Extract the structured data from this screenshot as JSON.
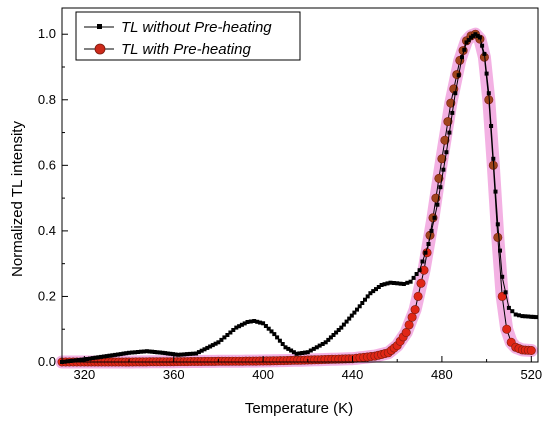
{
  "chart_data": {
    "type": "line",
    "title": "",
    "xlabel": "Temperature (K)",
    "ylabel": "Normalized TL intensity",
    "xlim": [
      310,
      523
    ],
    "ylim": [
      0.0,
      1.08
    ],
    "x_ticks": [
      320,
      360,
      400,
      440,
      480,
      520
    ],
    "y_ticks": [
      0.0,
      0.2,
      0.4,
      0.6,
      0.8,
      1.0
    ],
    "x_tick_labels": [
      "320",
      "360",
      "400",
      "440",
      "480",
      "520"
    ],
    "y_tick_labels": [
      "0.0",
      "0.2",
      "0.4",
      "0.6",
      "0.8",
      "1.0"
    ],
    "grid": false,
    "legend_position": "top-left",
    "series": [
      {
        "name": "TL without Pre-heating",
        "color": "#000000",
        "marker": "square",
        "x": [
          310,
          320,
          330,
          340,
          348,
          355,
          362,
          370,
          380,
          388,
          393,
          396,
          400,
          405,
          410,
          415,
          420,
          428,
          435,
          442,
          448,
          453,
          457,
          460,
          463,
          466,
          470,
          474,
          478,
          482,
          486,
          489,
          491,
          493,
          495,
          497,
          499,
          501,
          503,
          505,
          507,
          510,
          513,
          516,
          520,
          522
        ],
        "y": [
          0.0,
          0.008,
          0.018,
          0.028,
          0.033,
          0.028,
          0.022,
          0.026,
          0.06,
          0.105,
          0.122,
          0.125,
          0.118,
          0.085,
          0.045,
          0.025,
          0.03,
          0.06,
          0.105,
          0.16,
          0.21,
          0.235,
          0.242,
          0.24,
          0.238,
          0.245,
          0.28,
          0.36,
          0.48,
          0.64,
          0.82,
          0.93,
          0.975,
          0.99,
          1.0,
          0.99,
          0.94,
          0.82,
          0.62,
          0.42,
          0.26,
          0.165,
          0.145,
          0.14,
          0.138,
          0.137
        ]
      },
      {
        "name": "TL with Pre-heating",
        "color": "#cc2a1a",
        "marker": "circle",
        "x": [
          310,
          320,
          340,
          360,
          380,
          400,
          420,
          440,
          450,
          456,
          460,
          464,
          468,
          472,
          476,
          480,
          484,
          488,
          491,
          493,
          495,
          497,
          499,
          501,
          503,
          505,
          507,
          509,
          511,
          513,
          516,
          520
        ],
        "y": [
          0.0,
          0.0,
          0.0,
          0.001,
          0.002,
          0.003,
          0.006,
          0.01,
          0.018,
          0.028,
          0.05,
          0.09,
          0.16,
          0.28,
          0.44,
          0.62,
          0.79,
          0.92,
          0.98,
          0.995,
          1.0,
          0.985,
          0.93,
          0.8,
          0.6,
          0.38,
          0.2,
          0.1,
          0.06,
          0.045,
          0.037,
          0.035
        ]
      }
    ]
  }
}
